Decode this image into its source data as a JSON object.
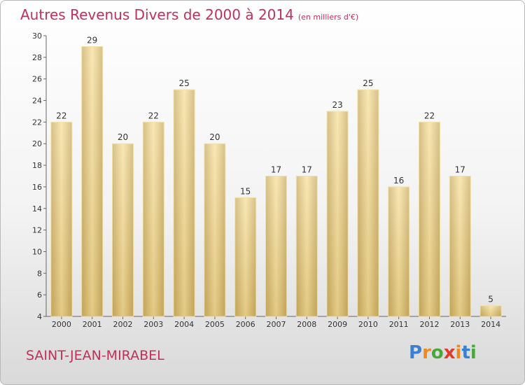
{
  "chart_data": {
    "type": "bar",
    "title": "Autres Revenus Divers de 2000 à 2014",
    "subtitle": "(en milliers d'€)",
    "categories": [
      "2000",
      "2001",
      "2002",
      "2003",
      "2004",
      "2005",
      "2006",
      "2007",
      "2008",
      "2009",
      "2010",
      "2011",
      "2012",
      "2013",
      "2014"
    ],
    "values": [
      22,
      29,
      20,
      22,
      25,
      20,
      15,
      17,
      17,
      23,
      25,
      16,
      22,
      17,
      5
    ],
    "ylim": [
      4,
      30
    ],
    "yticks": [
      4,
      6,
      8,
      10,
      12,
      14,
      16,
      18,
      20,
      22,
      24,
      26,
      28,
      30
    ],
    "xlabel": "",
    "ylabel": "",
    "grid": false,
    "bar_color": "#e9c97a"
  },
  "place_name": "SAINT-JEAN-MIRABEL",
  "brand": {
    "text": "Proxiti",
    "letters": [
      {
        "ch": "P",
        "color": "#3a7fd0"
      },
      {
        "ch": "r",
        "color": "#f08a1c"
      },
      {
        "ch": "o",
        "color": "#4aa83a"
      },
      {
        "ch": "x",
        "color": "#e23b2a"
      },
      {
        "ch": "i",
        "color": "#f08a1c"
      },
      {
        "ch": "t",
        "color": "#3a7fd0"
      },
      {
        "ch": "i",
        "color": "#4aa83a"
      }
    ]
  }
}
